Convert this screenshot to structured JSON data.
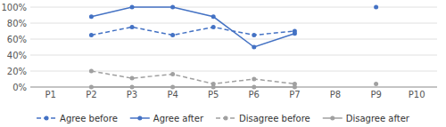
{
  "chart_data": {
    "type": "line",
    "categories": [
      "P1",
      "P2",
      "P3",
      "P4",
      "P5",
      "P6",
      "P7",
      "P8",
      "P9",
      "P10"
    ],
    "series": [
      {
        "name": "Agree before",
        "color": "#4472C4",
        "line_style": "dashed",
        "marker": "circle",
        "values": [
          null,
          65,
          75,
          65,
          75,
          65,
          70,
          null,
          null,
          null
        ]
      },
      {
        "name": "Agree after",
        "color": "#4472C4",
        "line_style": "solid",
        "marker": "circle",
        "values": [
          null,
          88,
          100,
          100,
          88,
          50,
          67,
          null,
          100,
          null
        ]
      },
      {
        "name": "Disagree before",
        "color": "#A0A0A0",
        "line_style": "dashed",
        "marker": "circle",
        "values": [
          null,
          20,
          11,
          16,
          4,
          10,
          4,
          null,
          null,
          null
        ]
      },
      {
        "name": "Disagree after",
        "color": "#A0A0A0",
        "line_style": "solid",
        "marker": "circle",
        "values": [
          null,
          0,
          0,
          0,
          0,
          0,
          0,
          null,
          4,
          null
        ]
      }
    ],
    "ylim": [
      0,
      100
    ],
    "yticks": [
      {
        "value": 0,
        "label": "0%"
      },
      {
        "value": 20,
        "label": "20%"
      },
      {
        "value": 40,
        "label": "40%"
      },
      {
        "value": 60,
        "label": "60%"
      },
      {
        "value": 80,
        "label": "80%"
      },
      {
        "value": 100,
        "label": "100%"
      }
    ],
    "grid": true,
    "legend": "bottom"
  }
}
